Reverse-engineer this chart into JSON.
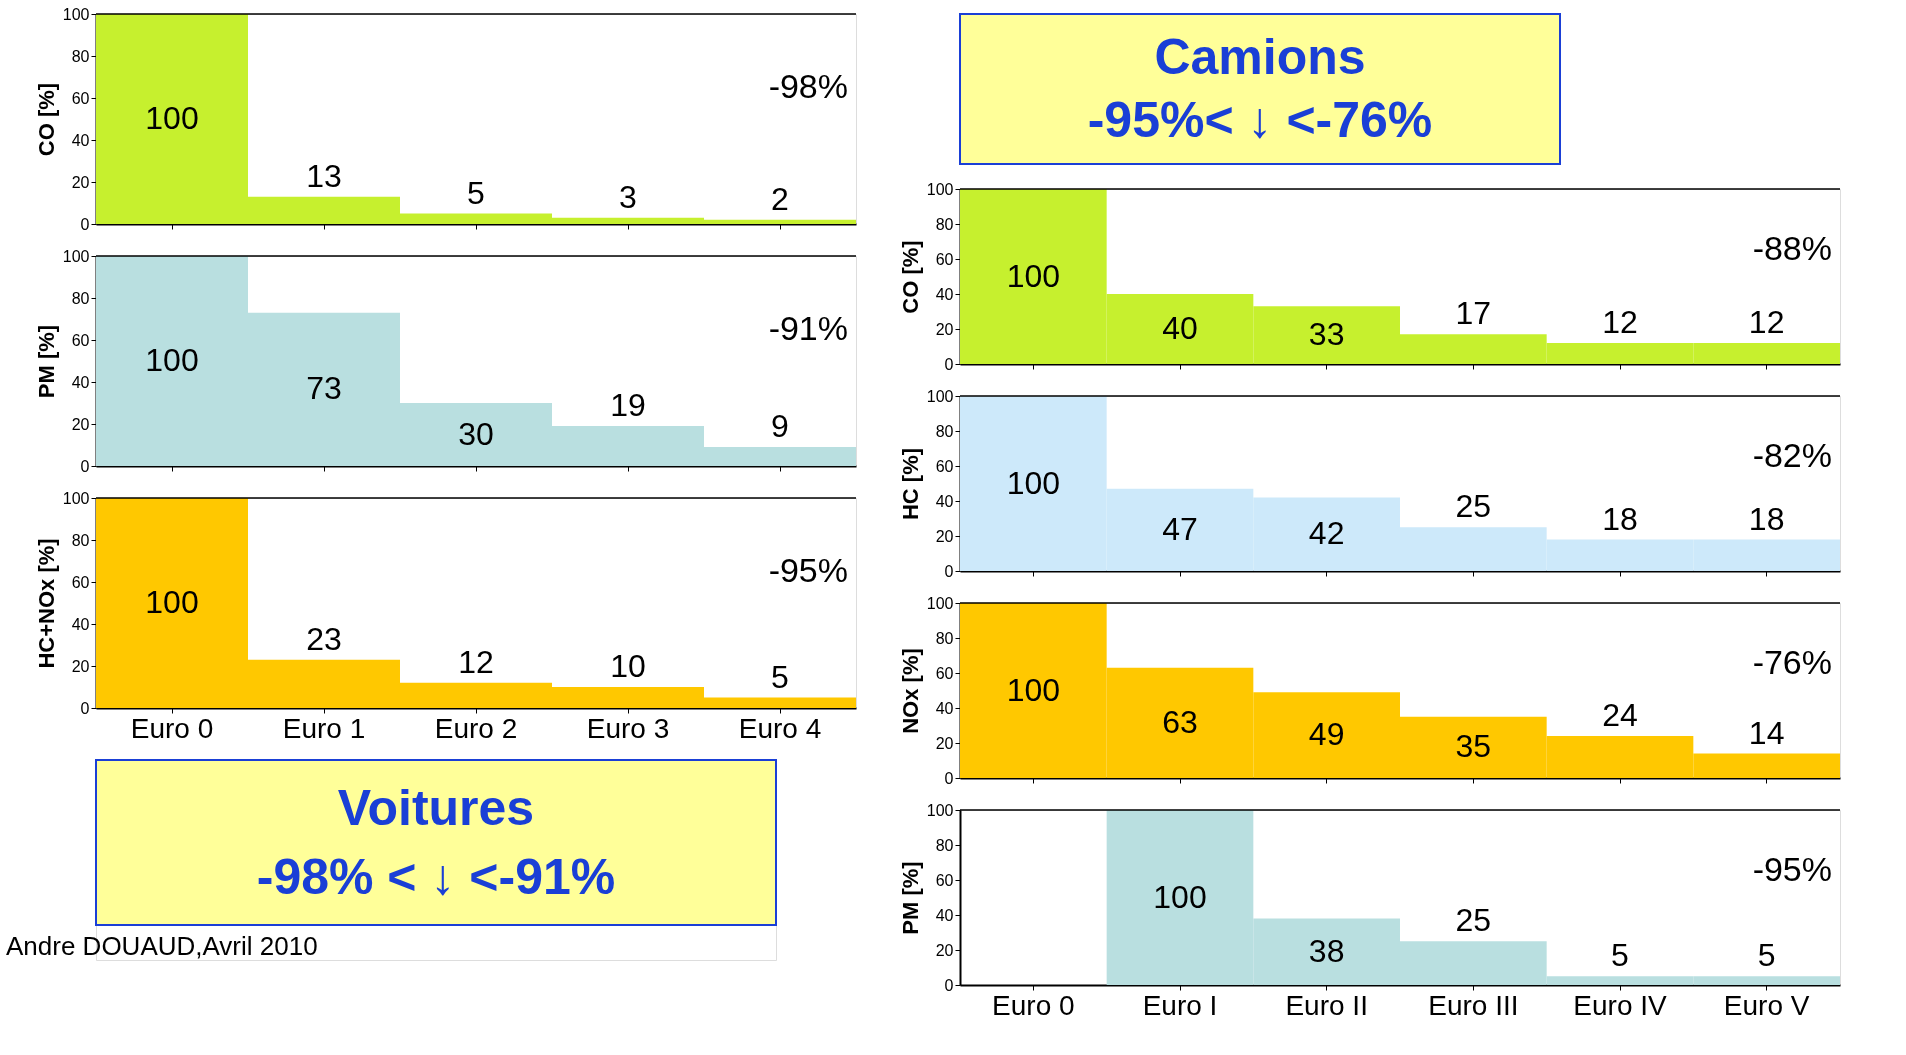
{
  "chart_data": [
    {
      "type": "bar",
      "ylabel": "CO [%]",
      "categories": [
        null,
        null,
        null,
        null,
        null
      ],
      "series": [
        {
          "color": "#c6f02e",
          "values": [
            100,
            13,
            5,
            3,
            2
          ]
        }
      ],
      "data_labels": true,
      "ylim": [
        0,
        100
      ],
      "yticks": [
        0,
        20,
        40,
        60,
        80,
        100
      ],
      "ref_lines": [
        {
          "axis": "y",
          "value": 100
        }
      ],
      "annotations": [
        "-98%"
      ],
      "tick_labels": "y"
    },
    {
      "type": "bar",
      "ylabel": "PM [%]",
      "categories": [
        null,
        null,
        null,
        null,
        null
      ],
      "series": [
        {
          "color": "#b9dfe0",
          "values": [
            100,
            73,
            30,
            19,
            9
          ]
        }
      ],
      "data_labels": true,
      "ylim": [
        0,
        100
      ],
      "yticks": [
        0,
        20,
        40,
        60,
        80,
        100
      ],
      "ref_lines": [
        {
          "axis": "y",
          "value": 100
        }
      ],
      "annotations": [
        "-91%"
      ],
      "tick_labels": "y"
    },
    {
      "type": "bar",
      "ylabel": "HC+NOx [%]",
      "categories": [
        "Euro 0",
        "Euro 1",
        "Euro 2",
        "Euro 3",
        "Euro 4"
      ],
      "series": [
        {
          "color": "#ffc800",
          "values": [
            100,
            23,
            12,
            10,
            5
          ]
        }
      ],
      "data_labels": true,
      "ylim": [
        0,
        100
      ],
      "yticks": [
        0,
        20,
        40,
        60,
        80,
        100
      ],
      "ref_lines": [
        {
          "axis": "y",
          "value": 100
        }
      ],
      "annotations": [
        "-95%"
      ]
    },
    {
      "type": "other",
      "title": "Voitures",
      "subtitle": "-98% < ↓ <-91%",
      "annotations": [
        "Andre DOUAUD,Avril 2010"
      ]
    },
    {
      "type": "other",
      "title": "Camions",
      "subtitle": "-95%< ↓ <-76%"
    },
    {
      "type": "bar",
      "ylabel": "CO [%]",
      "categories": [
        null,
        null,
        null,
        null,
        null,
        null
      ],
      "series": [
        {
          "color": "#c6f02e",
          "values": [
            100,
            40,
            33,
            17,
            12,
            12
          ]
        }
      ],
      "data_labels": true,
      "ylim": [
        0,
        100
      ],
      "yticks": [
        0,
        20,
        40,
        60,
        80,
        100
      ],
      "ref_lines": [
        {
          "axis": "y",
          "value": 100
        }
      ],
      "annotations": [
        "-88%"
      ],
      "tick_labels": "y"
    },
    {
      "type": "bar",
      "ylabel": "HC [%]",
      "categories": [
        null,
        null,
        null,
        null,
        null,
        null
      ],
      "series": [
        {
          "color": "#cde9fa",
          "values": [
            100,
            47,
            42,
            25,
            18,
            18
          ]
        }
      ],
      "data_labels": true,
      "ylim": [
        0,
        100
      ],
      "yticks": [
        0,
        20,
        40,
        60,
        80,
        100
      ],
      "ref_lines": [
        {
          "axis": "y",
          "value": 100
        }
      ],
      "annotations": [
        "-82%"
      ],
      "tick_labels": "y"
    },
    {
      "type": "bar",
      "ylabel": "NOx [%]",
      "categories": [
        null,
        null,
        null,
        null,
        null,
        null
      ],
      "series": [
        {
          "color": "#ffc800",
          "values": [
            100,
            63,
            49,
            35,
            24,
            14
          ]
        }
      ],
      "data_labels": true,
      "ylim": [
        0,
        100
      ],
      "yticks": [
        0,
        20,
        40,
        60,
        80,
        100
      ],
      "ref_lines": [
        {
          "axis": "y",
          "value": 100
        }
      ],
      "annotations": [
        "-76%"
      ],
      "tick_labels": "y"
    },
    {
      "type": "bar",
      "ylabel": "PM [%]",
      "categories": [
        "Euro 0",
        "Euro I",
        "Euro II",
        "Euro III",
        "Euro IV",
        "Euro V"
      ],
      "series": [
        {
          "color": "#b9dfe0",
          "values": [
            null,
            100,
            38,
            25,
            5,
            5
          ]
        }
      ],
      "data_labels": true,
      "ylim": [
        0,
        100
      ],
      "yticks": [
        0,
        20,
        40,
        60,
        80,
        100
      ],
      "ref_lines": [
        {
          "axis": "y",
          "value": 100
        }
      ],
      "annotations": [
        "-95%"
      ]
    }
  ]
}
